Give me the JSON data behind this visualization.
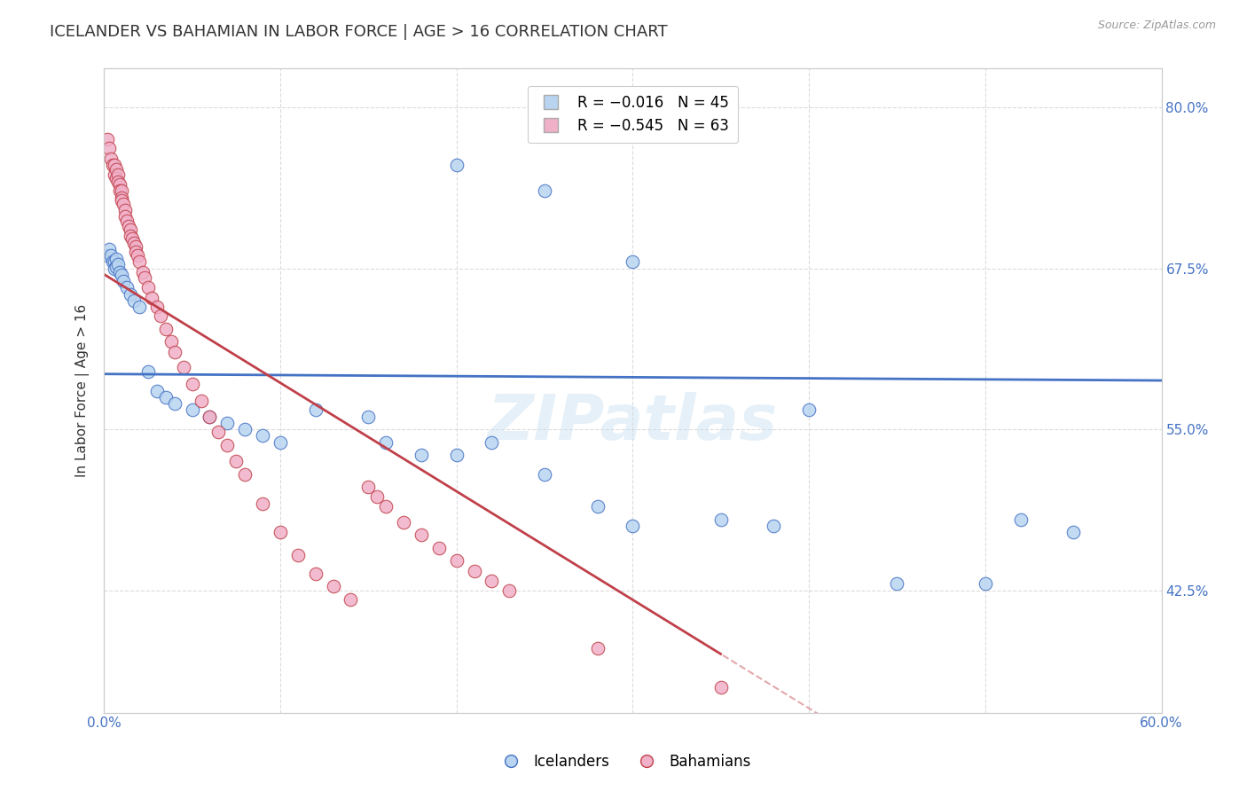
{
  "title": "ICELANDER VS BAHAMIAN IN LABOR FORCE | AGE > 16 CORRELATION CHART",
  "source": "Source: ZipAtlas.com",
  "ylabel": "In Labor Force | Age > 16",
  "xlim": [
    0.0,
    0.6
  ],
  "ylim": [
    0.33,
    0.83
  ],
  "yticks": [
    0.425,
    0.55,
    0.675,
    0.8
  ],
  "ytick_labels": [
    "42.5%",
    "55.0%",
    "67.5%",
    "80.0%"
  ],
  "xticks": [
    0.0,
    0.1,
    0.2,
    0.3,
    0.4,
    0.5,
    0.6
  ],
  "xtick_labels": [
    "0.0%",
    "",
    "",
    "",
    "",
    "",
    "60.0%"
  ],
  "icelander_color": "#b8d4f0",
  "bahamian_color": "#f0b0c8",
  "icelander_line_color": "#4472c4",
  "bahamian_line_color": "#c0404a",
  "watermark": "ZIPatlas",
  "icelanders_x": [
    0.002,
    0.003,
    0.004,
    0.005,
    0.006,
    0.006,
    0.007,
    0.007,
    0.008,
    0.009,
    0.01,
    0.011,
    0.013,
    0.015,
    0.017,
    0.02,
    0.025,
    0.03,
    0.035,
    0.04,
    0.05,
    0.06,
    0.07,
    0.08,
    0.09,
    0.1,
    0.12,
    0.15,
    0.16,
    0.18,
    0.2,
    0.22,
    0.25,
    0.28,
    0.3,
    0.35,
    0.38,
    0.4,
    0.45,
    0.5,
    0.52,
    0.55,
    0.2,
    0.25,
    0.3
  ],
  "icelanders_y": [
    0.685,
    0.69,
    0.685,
    0.68,
    0.68,
    0.675,
    0.682,
    0.676,
    0.678,
    0.672,
    0.67,
    0.665,
    0.66,
    0.655,
    0.65,
    0.645,
    0.595,
    0.58,
    0.575,
    0.57,
    0.565,
    0.56,
    0.555,
    0.55,
    0.545,
    0.54,
    0.565,
    0.56,
    0.54,
    0.53,
    0.53,
    0.54,
    0.515,
    0.49,
    0.475,
    0.48,
    0.475,
    0.565,
    0.43,
    0.43,
    0.48,
    0.47,
    0.755,
    0.735,
    0.68
  ],
  "bahamians_x": [
    0.002,
    0.003,
    0.004,
    0.005,
    0.006,
    0.006,
    0.007,
    0.007,
    0.008,
    0.008,
    0.009,
    0.009,
    0.01,
    0.01,
    0.01,
    0.011,
    0.012,
    0.012,
    0.013,
    0.014,
    0.015,
    0.015,
    0.016,
    0.017,
    0.018,
    0.018,
    0.019,
    0.02,
    0.022,
    0.023,
    0.025,
    0.027,
    0.03,
    0.032,
    0.035,
    0.038,
    0.04,
    0.045,
    0.05,
    0.055,
    0.06,
    0.065,
    0.07,
    0.075,
    0.08,
    0.09,
    0.1,
    0.11,
    0.12,
    0.13,
    0.14,
    0.15,
    0.155,
    0.16,
    0.17,
    0.18,
    0.19,
    0.2,
    0.21,
    0.22,
    0.23,
    0.28,
    0.35
  ],
  "bahamians_y": [
    0.775,
    0.768,
    0.76,
    0.755,
    0.755,
    0.748,
    0.752,
    0.745,
    0.748,
    0.742,
    0.74,
    0.735,
    0.735,
    0.73,
    0.728,
    0.725,
    0.72,
    0.715,
    0.712,
    0.708,
    0.705,
    0.7,
    0.698,
    0.695,
    0.692,
    0.688,
    0.685,
    0.68,
    0.672,
    0.668,
    0.66,
    0.652,
    0.645,
    0.638,
    0.628,
    0.618,
    0.61,
    0.598,
    0.585,
    0.572,
    0.56,
    0.548,
    0.538,
    0.525,
    0.515,
    0.492,
    0.47,
    0.452,
    0.438,
    0.428,
    0.418,
    0.505,
    0.498,
    0.49,
    0.478,
    0.468,
    0.458,
    0.448,
    0.44,
    0.432,
    0.425,
    0.38,
    0.35
  ],
  "background_color": "#ffffff",
  "grid_color": "#cccccc",
  "axis_color": "#4472c4",
  "title_color": "#333333",
  "title_fontsize": 13,
  "label_fontsize": 11,
  "tick_fontsize": 11,
  "marker_size": 110
}
